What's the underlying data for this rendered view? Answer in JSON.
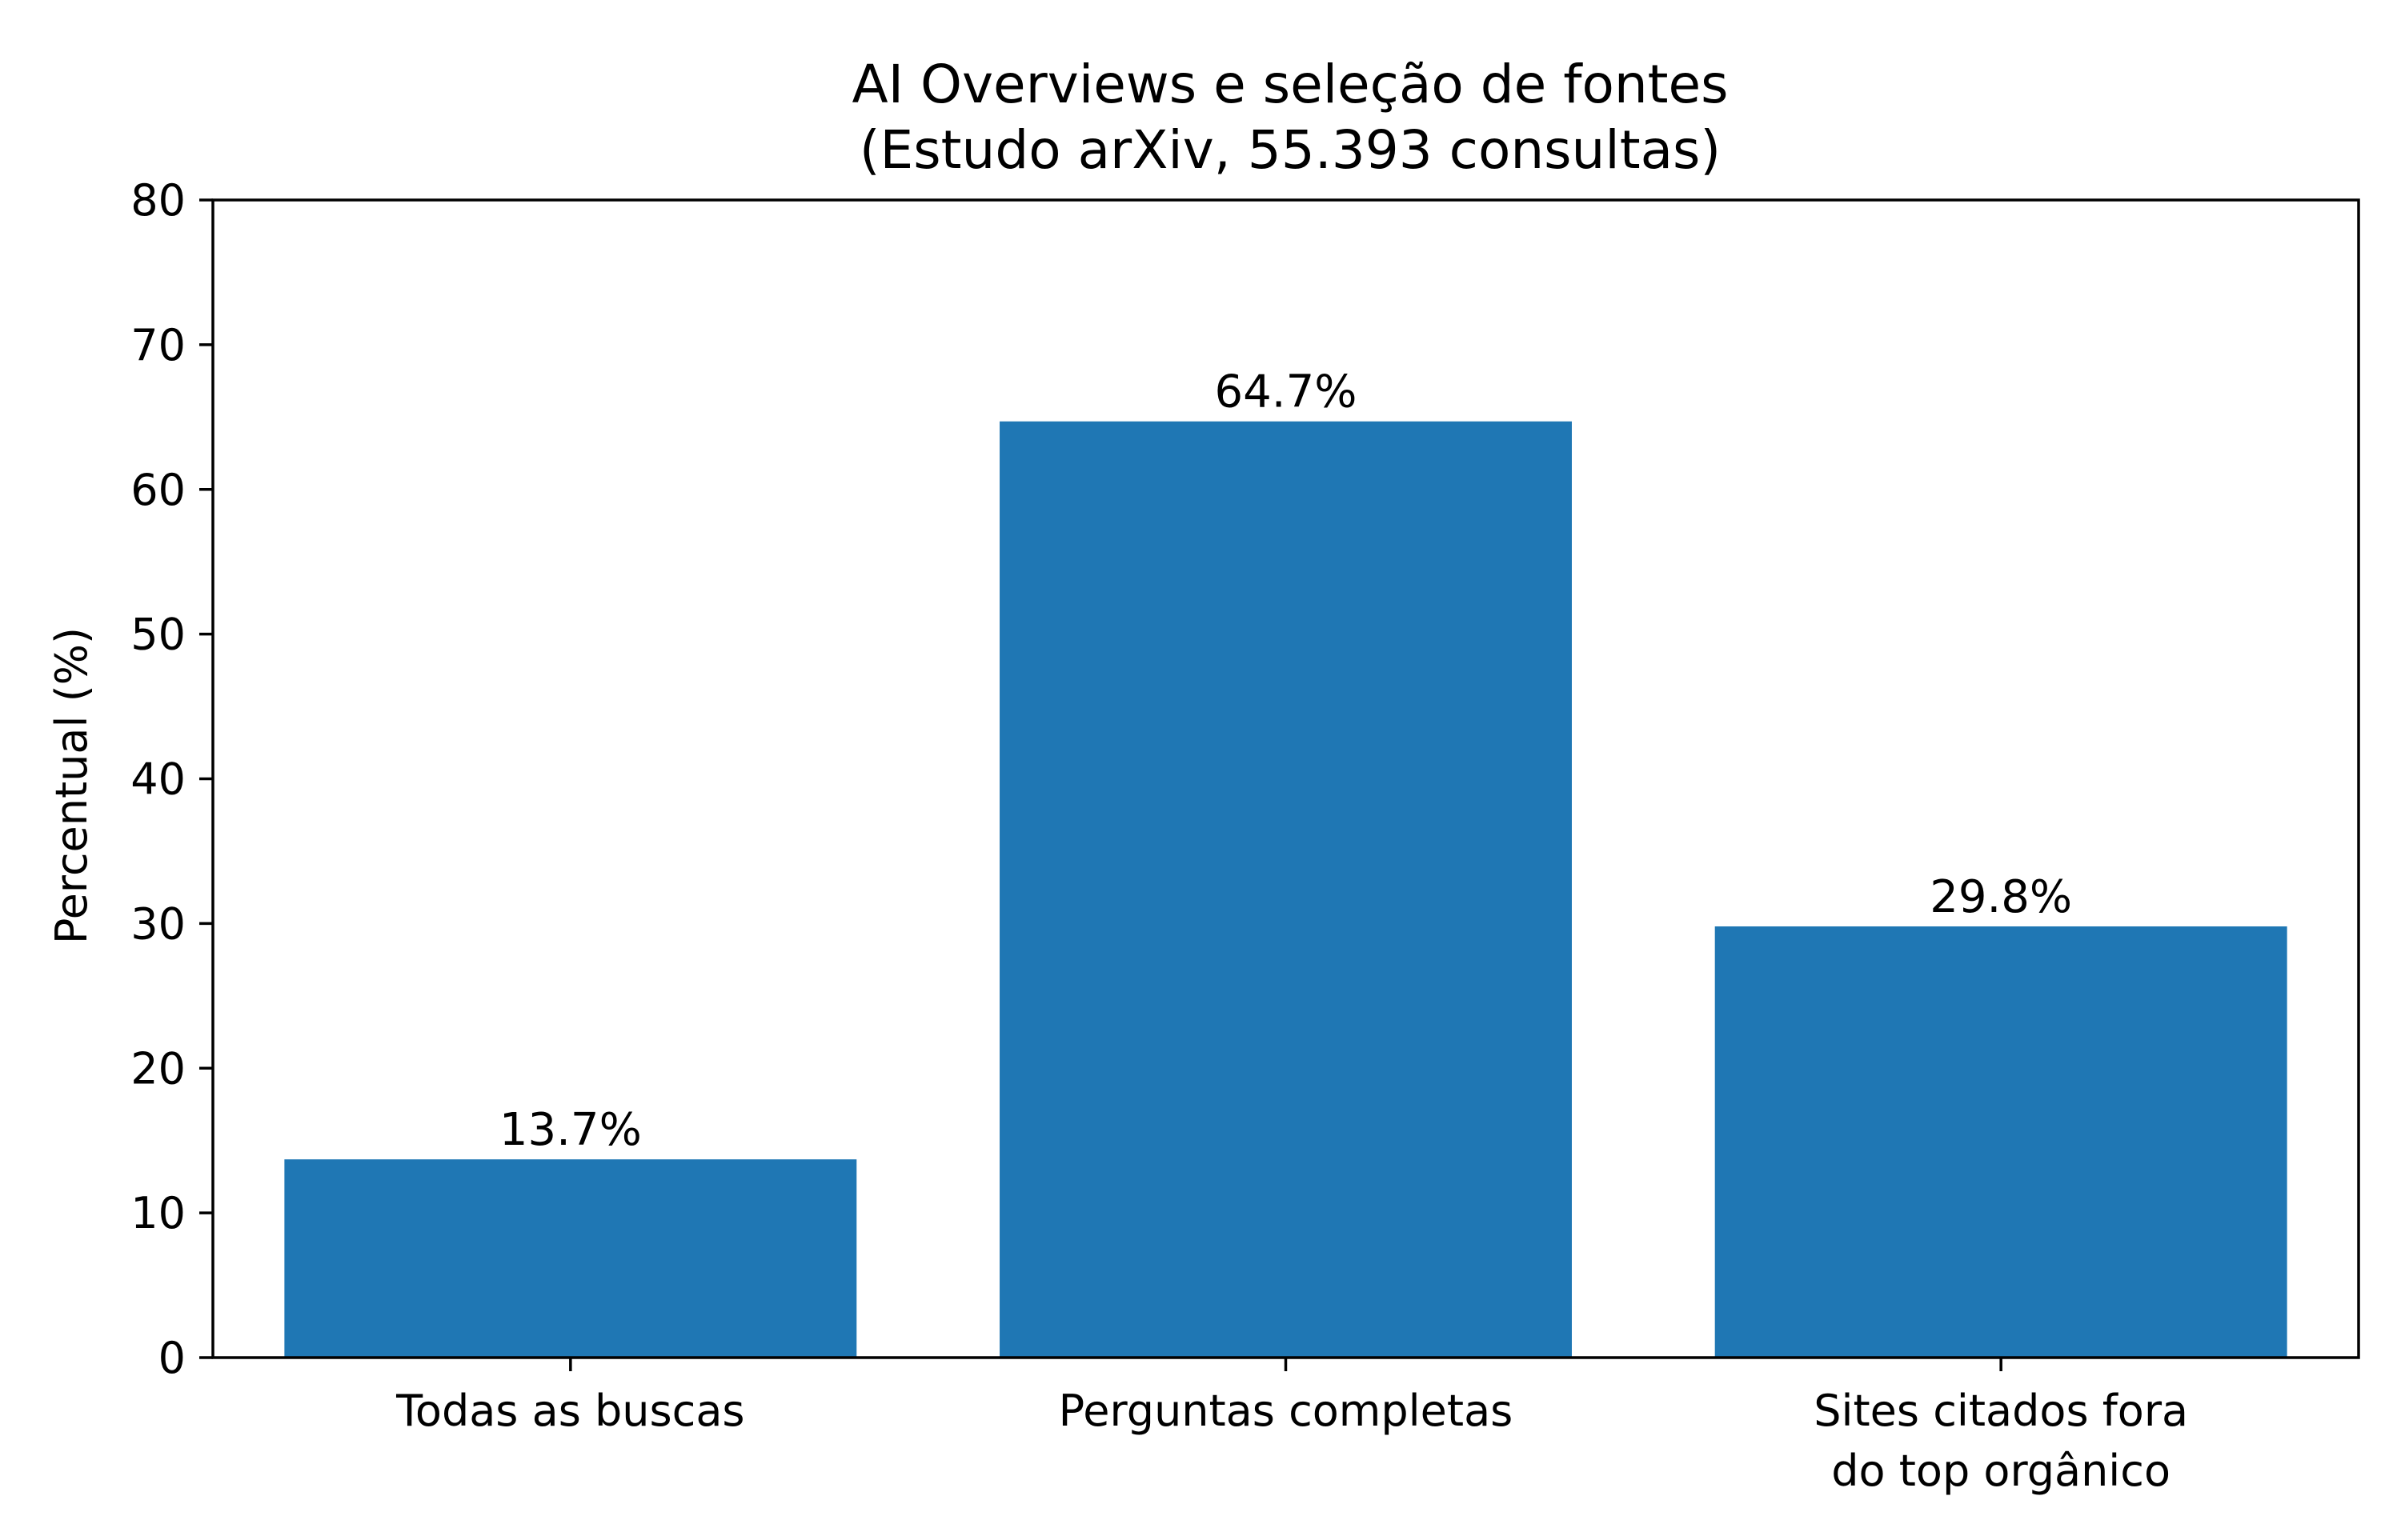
{
  "chart_data": {
    "type": "bar",
    "title": "AI Overviews e seleção de fontes",
    "subtitle": "(Estudo arXiv, 55.393 consultas)",
    "xlabel": "",
    "ylabel": "Percentual (%)",
    "categories": [
      [
        "Todas as buscas"
      ],
      [
        "Perguntas completas"
      ],
      [
        "Sites citados fora",
        "do top orgânico"
      ]
    ],
    "values": [
      13.7,
      64.7,
      29.8
    ],
    "bar_labels": [
      "13.7%",
      "64.7%",
      "29.8%"
    ],
    "ylim": [
      0,
      80
    ],
    "yticks": [
      0,
      10,
      20,
      30,
      40,
      50,
      60,
      70,
      80
    ],
    "ytick_labels": [
      "0",
      "10",
      "20",
      "30",
      "40",
      "50",
      "60",
      "70",
      "80"
    ],
    "grid": false,
    "legend": "none",
    "bar_color": "#1f77b4"
  }
}
